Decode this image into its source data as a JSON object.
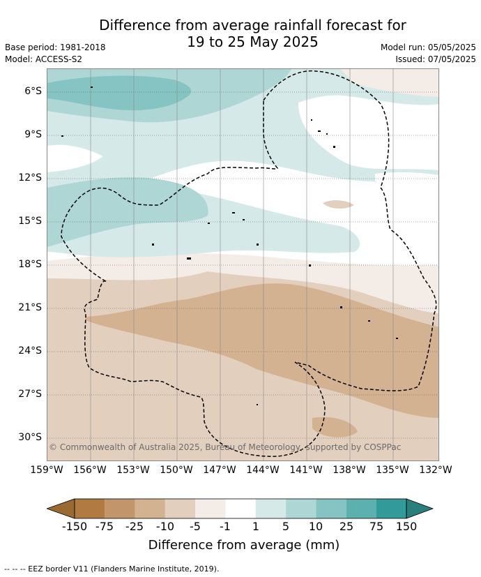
{
  "title_line1": "Difference from average rainfall forecast for",
  "title_line2": "19 to 25 May 2025",
  "base_period": "Base period: 1981-2018",
  "model": "Model: ACCESS-S2",
  "model_run": "Model run: 05/05/2025",
  "issued": "Issued: 07/05/2025",
  "copyright": "© Commonwealth of Australia 2025, Bureau of Meteorology, supported by COSPPac",
  "lat_labels": [
    "6°S",
    "9°S",
    "12°S",
    "15°S",
    "18°S",
    "21°S",
    "24°S",
    "27°S",
    "30°S"
  ],
  "lon_labels": [
    "159°W",
    "156°W",
    "153°W",
    "150°W",
    "147°W",
    "144°W",
    "141°W",
    "138°W",
    "135°W",
    "132°W"
  ],
  "colorbar": {
    "title": "Difference from average (mm)",
    "ticks": [
      "-150",
      "-75",
      "-25",
      "-10",
      "-5",
      "-1",
      "1",
      "5",
      "10",
      "25",
      "75",
      "150"
    ],
    "colors": [
      "#b07a42",
      "#c2956b",
      "#d3b292",
      "#e3cfbe",
      "#f4ece6",
      "#ffffff",
      "#d5e9e8",
      "#aed6d5",
      "#85c4c2",
      "#5cb0ae",
      "#329b99"
    ],
    "under_color": "#9a6a35",
    "over_color": "#2a7f7c"
  },
  "legend_note": "--  --  -- EEZ border V11 (Flanders Marine Institute, 2019)."
}
